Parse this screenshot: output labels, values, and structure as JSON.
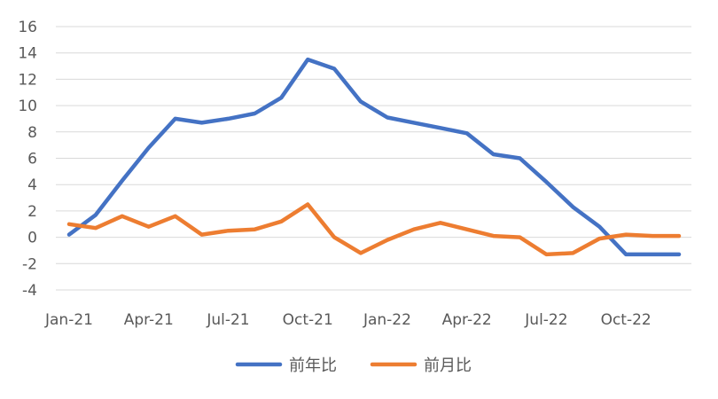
{
  "chart_data": {
    "type": "line",
    "x": [
      "Jan-21",
      "Feb-21",
      "Mar-21",
      "Apr-21",
      "May-21",
      "Jun-21",
      "Jul-21",
      "Aug-21",
      "Sep-21",
      "Oct-21",
      "Nov-21",
      "Dec-21",
      "Jan-22",
      "Feb-22",
      "Mar-22",
      "Apr-22",
      "May-22",
      "Jun-22",
      "Jul-22",
      "Aug-22",
      "Sep-22",
      "Oct-22",
      "Nov-22",
      "Dec-22"
    ],
    "x_tick_labels": [
      "Jan-21",
      "Apr-21",
      "Jul-21",
      "Oct-21",
      "Jan-22",
      "Apr-22",
      "Jul-22",
      "Oct-22"
    ],
    "ylim": [
      -4,
      16
    ],
    "y_ticks": [
      -4,
      -2,
      0,
      2,
      4,
      6,
      8,
      10,
      12,
      14,
      16
    ],
    "y_tick_labels": [
      "-4",
      "-2",
      "0",
      "2",
      "4",
      "6",
      "8",
      "10",
      "12",
      "14",
      "16"
    ],
    "grid": "horizontal",
    "legend_position": "bottom",
    "series": [
      {
        "name": "前年比",
        "color": "#4472C4",
        "values": [
          0.2,
          1.7,
          4.3,
          6.8,
          9.0,
          8.7,
          9.0,
          9.4,
          10.6,
          13.5,
          12.8,
          10.3,
          9.1,
          8.7,
          8.3,
          7.9,
          6.3,
          6.0,
          4.2,
          2.3,
          0.8,
          -1.3,
          -1.3,
          -1.3
        ]
      },
      {
        "name": "前月比",
        "color": "#ED7D31",
        "values": [
          1.0,
          0.7,
          1.6,
          0.8,
          1.6,
          0.2,
          0.5,
          0.6,
          1.2,
          2.5,
          0.0,
          -1.2,
          -0.2,
          0.6,
          1.1,
          0.6,
          0.1,
          0.0,
          -1.3,
          -1.2,
          -0.1,
          0.2,
          0.1,
          0.1
        ]
      }
    ]
  }
}
